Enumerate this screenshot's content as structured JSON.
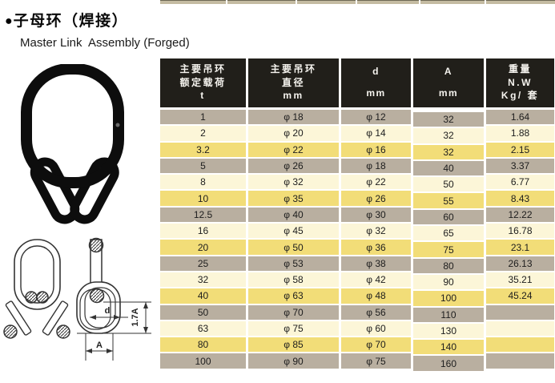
{
  "header": {
    "bullet": "●",
    "title_cn": "子母环（焊接）",
    "title_en": "Master Link  Assembly (Forged)"
  },
  "diagram": {
    "d_label": "d",
    "a_label": "A",
    "h_label": "1.7A"
  },
  "palette": {
    "header_bg": "#211f1a",
    "row_gray": "#b9afa0",
    "row_cream": "#fcf6d8",
    "row_yellow": "#f2dd78",
    "strip_tan": "#c4bba2"
  },
  "table": {
    "headers": [
      {
        "lines": [
          "主要吊环",
          "额定载荷",
          "t"
        ]
      },
      {
        "lines": [
          "主要吊环",
          "直径",
          "mm"
        ]
      },
      {
        "lines": [
          "d",
          "mm"
        ],
        "sparse": true
      },
      {
        "lines": [
          "A",
          "mm"
        ],
        "sparse": true
      },
      {
        "lines": [
          "重量",
          "N.W",
          "Kg/ 套"
        ]
      }
    ],
    "rows": [
      [
        "1",
        "φ 18",
        "φ 12",
        "32",
        "1.64"
      ],
      [
        "2",
        "φ 20",
        "φ 14",
        "32",
        "1.88"
      ],
      [
        "3.2",
        "φ 22",
        "φ 16",
        "32",
        "2.15"
      ],
      [
        "5",
        "φ 26",
        "φ 18",
        "40",
        "3.37"
      ],
      [
        "8",
        "φ 32",
        "φ 22",
        "50",
        "6.77"
      ],
      [
        "10",
        "φ 35",
        "φ 26",
        "55",
        "8.43"
      ],
      [
        "12.5",
        "φ 40",
        "φ 30",
        "60",
        "12.22"
      ],
      [
        "16",
        "φ 45",
        "φ 32",
        "65",
        "16.78"
      ],
      [
        "20",
        "φ 50",
        "φ 36",
        "75",
        "23.1"
      ],
      [
        "25",
        "φ 53",
        "φ 38",
        "80",
        "26.13"
      ],
      [
        "32",
        "φ 58",
        "φ 42",
        "90",
        "35.21"
      ],
      [
        "40",
        "φ 63",
        "φ 48",
        "100",
        "45.24"
      ],
      [
        "50",
        "φ 70",
        "φ 56",
        "110",
        ""
      ],
      [
        "63",
        "φ 75",
        "φ 60",
        "130",
        ""
      ],
      [
        "80",
        "φ 85",
        "φ 70",
        "140",
        ""
      ],
      [
        "100",
        "φ 90",
        "φ 75",
        "160",
        ""
      ]
    ]
  }
}
